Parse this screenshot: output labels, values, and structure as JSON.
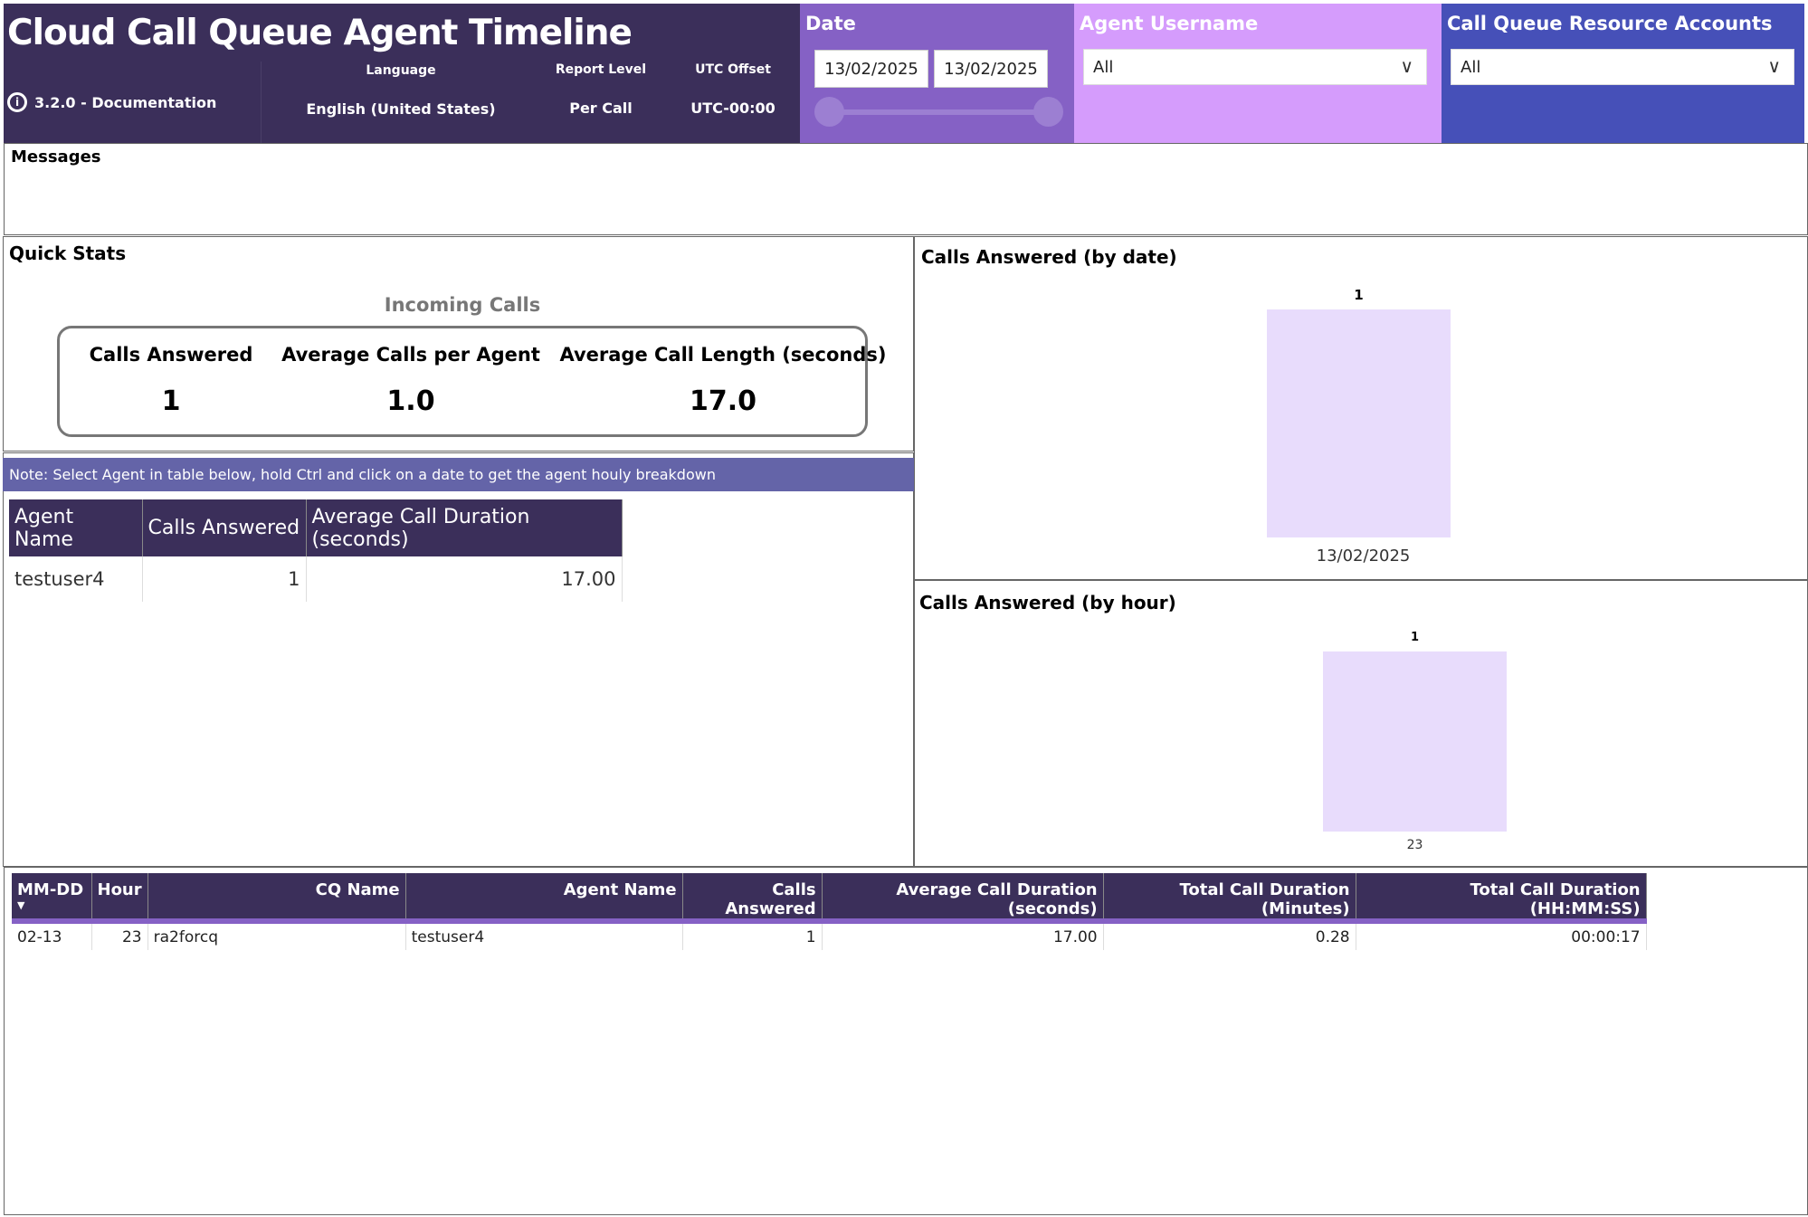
{
  "header": {
    "title": "Cloud Call Queue Agent Timeline",
    "version": "3.2.0 - Documentation",
    "language_label": "Language",
    "language_value": "English (United States)",
    "report_level_label": "Report Level",
    "report_level_value": "Per Call",
    "utc_label": "UTC Offset",
    "utc_value": "UTC-00:00"
  },
  "filters": {
    "date_label": "Date",
    "date_start": "13/02/2025",
    "date_end": "13/02/2025",
    "agent_label": "Agent Username",
    "agent_value": "All",
    "cq_label": "Call Queue Resource Accounts",
    "cq_value": "All"
  },
  "messages": {
    "title": "Messages"
  },
  "quick_stats": {
    "title": "Quick Stats",
    "group": "Incoming Calls",
    "stats": [
      {
        "label": "Calls Answered",
        "value": "1"
      },
      {
        "label": "Average Calls per Agent",
        "value": "1.0"
      },
      {
        "label": "Average Call Length (seconds)",
        "value": "17.0"
      }
    ]
  },
  "note": "Note: Select Agent in table below, hold Ctrl and click on a date to get the agent houly breakdown",
  "agent_table": {
    "columns": [
      "Agent Name",
      "Calls Answered",
      "Average Call Duration (seconds)"
    ],
    "rows": [
      [
        "testuser4",
        "1",
        "17.00"
      ]
    ]
  },
  "detail_table": {
    "columns": [
      "MM-DD",
      "Hour",
      "CQ Name",
      "Agent Name",
      "Calls Answered",
      "Average Call Duration (seconds)",
      "Total Call Duration (Minutes)",
      "Total Call Duration (HH:MM:SS)"
    ],
    "rows": [
      [
        "02-13",
        "23",
        "ra2forcq",
        "testuser4",
        "1",
        "17.00",
        "0.28",
        "00:00:17"
      ]
    ]
  },
  "colors": {
    "header": "#3b2f5a",
    "date_panel": "#8561c5",
    "agent_panel": "#d59cfc",
    "cq_panel": "#4650b8",
    "bar": "#e8dcfc"
  },
  "chart_data": [
    {
      "type": "bar",
      "title": "Calls Answered (by date)",
      "categories": [
        "13/02/2025"
      ],
      "values": [
        1
      ],
      "data_labels": [
        "1"
      ]
    },
    {
      "type": "bar",
      "title": "Calls Answered (by hour)",
      "categories": [
        "23"
      ],
      "values": [
        1
      ],
      "data_labels": [
        "1"
      ]
    }
  ]
}
